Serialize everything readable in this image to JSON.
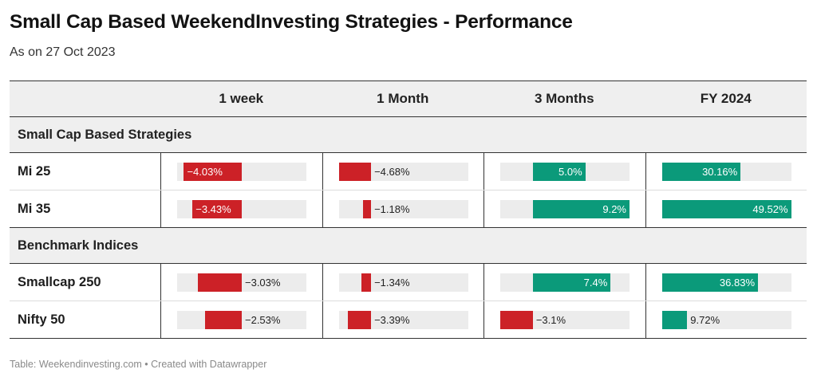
{
  "title": "Small Cap Based WeekendInvesting Strategies - Performance",
  "subtitle": "As on 27 Oct 2023",
  "footer": "Table: Weekendinvesting.com • Created with Datawrapper",
  "colors": {
    "negative": "#cc2127",
    "positive": "#0b9a7a",
    "track": "#ececec"
  },
  "chart_data": {
    "type": "table",
    "columns": [
      "1 week",
      "1 Month",
      "3 Months",
      "FY 2024"
    ],
    "column_ranges": [
      {
        "min": -4.5,
        "max": 4.5
      },
      {
        "min": -4.68,
        "max": 14.0
      },
      {
        "min": -3.1,
        "max": 9.2
      },
      {
        "min": 0,
        "max": 49.52
      }
    ],
    "groups": [
      {
        "name": "Small Cap Based Strategies",
        "rows": [
          {
            "label": "Mi 25",
            "values": [
              -4.03,
              -4.68,
              5.0,
              30.16
            ],
            "display": [
              "−4.03%",
              "−4.68%",
              "5.0%",
              "30.16%"
            ]
          },
          {
            "label": "Mi 35",
            "values": [
              -3.43,
              -1.18,
              9.2,
              49.52
            ],
            "display": [
              "−3.43%",
              "−1.18%",
              "9.2%",
              "49.52%"
            ]
          }
        ]
      },
      {
        "name": "Benchmark Indices",
        "rows": [
          {
            "label": "Smallcap 250",
            "values": [
              -3.03,
              -1.34,
              7.4,
              36.83
            ],
            "display": [
              "−3.03%",
              "−1.34%",
              "7.4%",
              "36.83%"
            ]
          },
          {
            "label": "Nifty 50",
            "values": [
              -2.53,
              -3.39,
              -3.1,
              9.72
            ],
            "display": [
              "−2.53%",
              "−3.39%",
              "−3.1%",
              "9.72%"
            ]
          }
        ]
      }
    ]
  }
}
